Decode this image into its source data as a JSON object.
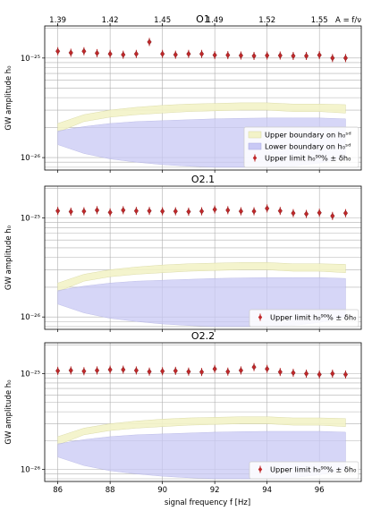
{
  "chart_data": {
    "type": "scatter",
    "shared_x": {
      "label": "signal frequency f [Hz]",
      "range": [
        85.5,
        97.6
      ],
      "ticks": [
        86,
        88,
        90,
        92,
        94,
        96
      ],
      "tick_labels": [
        "86",
        "88",
        "90",
        "92",
        "94",
        "96"
      ]
    },
    "top_axis": {
      "label": "A = f/ν",
      "tick_labels": [
        "1.39",
        "1.42",
        "1.45",
        "1.49",
        "1.52",
        "1.55"
      ],
      "tick_positions_hz": [
        86,
        88,
        90,
        92,
        94,
        96
      ]
    },
    "y_axis": {
      "label": "GW amplitude h₀",
      "scale": "log",
      "range": [
        7.5e-27,
        2.1e-25
      ],
      "tick_labels": [
        "10⁻²⁶",
        "10⁻²⁵"
      ]
    },
    "panels": [
      {
        "title": "O1",
        "legend": [
          "Upper boundary on h₀ˢᵈ",
          "Lower boundary on h₀ˢᵈ",
          "Upper limit h₀⁹⁰% ± δh₀"
        ],
        "upper_limits": {
          "x": [
            86,
            86.5,
            87,
            87.5,
            88,
            88.5,
            89,
            89.5,
            90,
            90.5,
            91,
            91.5,
            92,
            92.5,
            93,
            93.5,
            94,
            94.5,
            95,
            95.5,
            96,
            96.5,
            97
          ],
          "y": [
            1.17e-25,
            1.13e-25,
            1.17e-25,
            1.12e-25,
            1.1e-25,
            1.08e-25,
            1.1e-25,
            1.45e-25,
            1.1e-25,
            1.08e-25,
            1.1e-25,
            1.1e-25,
            1.07e-25,
            1.07e-25,
            1.06e-25,
            1.05e-25,
            1.06e-25,
            1.06e-25,
            1.05e-25,
            1.05e-25,
            1.07e-25,
            1e-25,
            1e-25
          ]
        }
      },
      {
        "title": "O2.1",
        "legend": [
          "Upper limit h₀⁹⁰% ± δh₀"
        ],
        "upper_limits": {
          "x": [
            86,
            86.5,
            87,
            87.5,
            88,
            88.5,
            89,
            89.5,
            90,
            90.5,
            91,
            91.5,
            92,
            92.5,
            93,
            93.5,
            94,
            94.5,
            95,
            95.5,
            96,
            96.5,
            97
          ],
          "y": [
            1.18e-25,
            1.16e-25,
            1.17e-25,
            1.2e-25,
            1.14e-25,
            1.2e-25,
            1.18e-25,
            1.18e-25,
            1.17e-25,
            1.17e-25,
            1.16e-25,
            1.17e-25,
            1.22e-25,
            1.2e-25,
            1.17e-25,
            1.17e-25,
            1.25e-25,
            1.18e-25,
            1.12e-25,
            1.1e-25,
            1.13e-25,
            1.05e-25,
            1.12e-25
          ]
        }
      },
      {
        "title": "O2.2",
        "legend": [
          "Upper limit h₀⁹⁰% ± δh₀"
        ],
        "upper_limits": {
          "x": [
            86,
            86.5,
            87,
            87.5,
            88,
            88.5,
            89,
            89.5,
            90,
            90.5,
            91,
            91.5,
            92,
            92.5,
            93,
            93.5,
            94,
            94.5,
            95,
            95.5,
            96,
            96.5,
            97
          ],
          "y": [
            1.07e-25,
            1.08e-25,
            1.06e-25,
            1.08e-25,
            1.1e-25,
            1.1e-25,
            1.08e-25,
            1.05e-25,
            1.06e-25,
            1.07e-25,
            1.05e-25,
            1.04e-25,
            1.12e-25,
            1.05e-25,
            1.08e-25,
            1.17e-25,
            1.12e-25,
            1.04e-25,
            1.02e-25,
            1e-25,
            9.8e-26,
            1e-25,
            9.8e-26
          ]
        }
      }
    ],
    "bands": {
      "upper_boundary": {
        "x": [
          86,
          87,
          88,
          89,
          90,
          91,
          92,
          93,
          94,
          95,
          96,
          97
        ],
        "low": [
          1.8e-26,
          2.3e-26,
          2.55e-26,
          2.7e-26,
          2.8e-26,
          2.9e-26,
          2.95e-26,
          3e-26,
          3e-26,
          2.9e-26,
          2.9e-26,
          2.8e-26
        ],
        "high": [
          2.2e-26,
          2.7e-26,
          3e-26,
          3.2e-26,
          3.35e-26,
          3.45e-26,
          3.5e-26,
          3.55e-26,
          3.55e-26,
          3.45e-26,
          3.45e-26,
          3.4e-26
        ]
      },
      "lower_boundary": {
        "x": [
          86,
          87,
          88,
          89,
          90,
          91,
          92,
          93,
          94,
          95,
          96,
          97
        ],
        "low": [
          1.35e-26,
          1.1e-26,
          9.7e-27,
          9e-27,
          8.5e-27,
          8.2e-27,
          8e-27,
          8e-27,
          8e-27,
          8.2e-27,
          8.8e-27,
          1e-26
        ],
        "high": [
          1.85e-26,
          2.05e-26,
          2.2e-26,
          2.3e-26,
          2.35e-26,
          2.4e-26,
          2.45e-26,
          2.48e-26,
          2.5e-26,
          2.5e-26,
          2.5e-26,
          2.45e-26
        ]
      }
    },
    "colors": {
      "upper_band": "#f3f3c8",
      "lower_band": "#c9c9f5",
      "marker": "#c0282a",
      "grid": "#b0b0b0"
    }
  }
}
